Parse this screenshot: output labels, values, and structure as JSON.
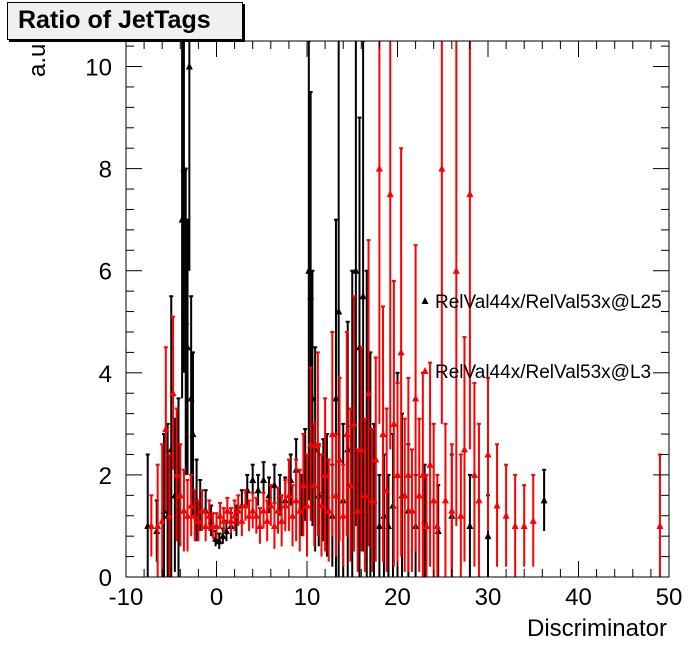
{
  "chart_data": {
    "type": "scatter",
    "title": "Ratio of JetTags",
    "xlabel": "Discriminator",
    "ylabel": "a.u.",
    "xlim": [
      -10,
      50
    ],
    "ylim": [
      0,
      10.5
    ],
    "x_ticks": [
      "-10",
      "0",
      "10",
      "20",
      "30",
      "40",
      "50"
    ],
    "y_ticks": [
      "0",
      "2",
      "4",
      "6",
      "8",
      "10"
    ],
    "grid": false,
    "legend_position": "right",
    "series": [
      {
        "name": "RelVal44x/RelVal53x@L25",
        "color": "#000000",
        "marker": "triangle-up",
        "points": [
          [
            -7.6,
            1.0,
            1.4
          ],
          [
            -6.6,
            0.9,
            0.6
          ],
          [
            -5.8,
            1.3,
            1.5
          ],
          [
            -5.4,
            1.2,
            1.8
          ],
          [
            -5.0,
            2.5,
            3.0
          ],
          [
            -4.6,
            1.6,
            1.5
          ],
          [
            -4.2,
            1.3,
            2.2
          ],
          [
            -3.8,
            7.0,
            3.5
          ],
          [
            -3.6,
            8.0,
            4.0
          ],
          [
            -3.4,
            5.0,
            3.0
          ],
          [
            -3.2,
            4.5,
            2.5
          ],
          [
            -3.0,
            10.0,
            4.0
          ],
          [
            -2.8,
            3.5,
            2.0
          ],
          [
            -2.6,
            2.8,
            1.6
          ],
          [
            -2.2,
            1.5,
            0.8
          ],
          [
            -1.8,
            1.4,
            0.5
          ],
          [
            -1.2,
            1.3,
            0.4
          ],
          [
            -0.6,
            1.1,
            0.3
          ],
          [
            -0.1,
            0.75,
            0.15
          ],
          [
            0.3,
            0.7,
            0.15
          ],
          [
            0.7,
            0.8,
            0.15
          ],
          [
            1.1,
            0.9,
            0.2
          ],
          [
            1.6,
            1.0,
            0.25
          ],
          [
            2.2,
            1.1,
            0.3
          ],
          [
            2.8,
            1.4,
            0.3
          ],
          [
            3.4,
            1.7,
            0.3
          ],
          [
            4.0,
            1.9,
            0.3
          ],
          [
            4.6,
            1.7,
            0.3
          ],
          [
            5.2,
            1.9,
            0.35
          ],
          [
            5.8,
            1.6,
            0.35
          ],
          [
            6.4,
            1.8,
            0.4
          ],
          [
            7.0,
            1.6,
            0.4
          ],
          [
            7.6,
            1.5,
            0.45
          ],
          [
            8.2,
            1.9,
            0.5
          ],
          [
            8.8,
            2.1,
            0.6
          ],
          [
            9.4,
            1.4,
            0.6
          ],
          [
            9.8,
            2.0,
            0.9
          ],
          [
            10.2,
            6.0,
            4.5
          ],
          [
            10.4,
            5.5,
            4.0
          ],
          [
            10.6,
            3.5,
            2.5
          ],
          [
            10.9,
            2.5,
            2.0
          ],
          [
            11.3,
            1.6,
            1.0
          ],
          [
            11.8,
            1.7,
            1.0
          ],
          [
            12.2,
            1.6,
            1.2
          ],
          [
            12.8,
            1.2,
            1.0
          ],
          [
            13.2,
            3.5,
            3.5
          ],
          [
            13.5,
            5.2,
            5.5
          ],
          [
            14.0,
            1.5,
            1.5
          ],
          [
            14.5,
            2.5,
            2.5
          ],
          [
            15.0,
            3.0,
            3.0
          ],
          [
            15.4,
            6.0,
            5.0
          ],
          [
            15.8,
            4.5,
            4.5
          ],
          [
            16.2,
            5.5,
            5.0
          ],
          [
            16.6,
            3.0,
            3.0
          ],
          [
            17.0,
            2.2,
            2.2
          ],
          [
            17.4,
            1.5,
            1.5
          ],
          [
            18.0,
            1.0,
            1.0
          ],
          [
            18.5,
            1.2,
            1.2
          ],
          [
            19.0,
            1.0,
            1.0
          ],
          [
            19.5,
            1.4,
            1.4
          ],
          [
            20.0,
            2.0,
            2.0
          ],
          [
            20.5,
            1.6,
            1.6
          ],
          [
            21.2,
            1.3,
            1.3
          ],
          [
            22.0,
            1.0,
            1.0
          ],
          [
            23.0,
            1.1,
            1.1
          ],
          [
            24.5,
            0.9,
            0.9
          ],
          [
            26.0,
            1.2,
            1.2
          ],
          [
            28.0,
            1.0,
            1.0
          ],
          [
            30.0,
            0.8,
            0.8
          ],
          [
            36.2,
            1.5,
            0.6
          ]
        ]
      },
      {
        "name": "RelVal44x/RelVal53x@L3",
        "color": "#ff0000",
        "marker": "triangle-up",
        "points": [
          [
            -7.2,
            1.0,
            0.6
          ],
          [
            -6.5,
            1.0,
            1.2
          ],
          [
            -6.0,
            1.1,
            1.5
          ],
          [
            -5.6,
            2.9,
            1.6
          ],
          [
            -5.2,
            1.2,
            1.2
          ],
          [
            -4.8,
            3.6,
            1.5
          ],
          [
            -4.4,
            2.0,
            1.3
          ],
          [
            -4.0,
            1.6,
            1.0
          ],
          [
            -3.6,
            1.3,
            0.8
          ],
          [
            -3.2,
            1.2,
            0.7
          ],
          [
            -2.8,
            1.4,
            0.6
          ],
          [
            -2.4,
            1.2,
            0.5
          ],
          [
            -2.0,
            1.1,
            0.4
          ],
          [
            -1.6,
            1.3,
            0.4
          ],
          [
            -1.2,
            1.0,
            0.3
          ],
          [
            -0.8,
            1.2,
            0.3
          ],
          [
            -0.4,
            1.0,
            0.25
          ],
          [
            0.0,
            1.0,
            0.25
          ],
          [
            0.4,
            1.2,
            0.25
          ],
          [
            0.8,
            1.1,
            0.25
          ],
          [
            1.2,
            1.3,
            0.25
          ],
          [
            1.6,
            1.1,
            0.25
          ],
          [
            2.0,
            1.2,
            0.3
          ],
          [
            2.4,
            1.3,
            0.3
          ],
          [
            2.8,
            1.1,
            0.3
          ],
          [
            3.2,
            1.4,
            0.3
          ],
          [
            3.6,
            1.2,
            0.3
          ],
          [
            4.0,
            1.3,
            0.35
          ],
          [
            4.4,
            1.2,
            0.35
          ],
          [
            4.8,
            1.0,
            0.35
          ],
          [
            5.2,
            1.3,
            0.35
          ],
          [
            5.6,
            1.1,
            0.4
          ],
          [
            6.0,
            1.4,
            0.4
          ],
          [
            6.4,
            1.0,
            0.45
          ],
          [
            6.8,
            1.3,
            0.45
          ],
          [
            7.2,
            1.1,
            0.5
          ],
          [
            7.6,
            1.4,
            0.5
          ],
          [
            8.0,
            1.6,
            0.7
          ],
          [
            8.4,
            1.2,
            0.6
          ],
          [
            8.8,
            1.5,
            0.8
          ],
          [
            9.2,
            1.3,
            0.8
          ],
          [
            9.6,
            1.8,
            1.0
          ],
          [
            10.0,
            1.4,
            1.0
          ],
          [
            10.4,
            2.6,
            1.5
          ],
          [
            10.8,
            1.8,
            1.2
          ],
          [
            11.2,
            2.6,
            1.8
          ],
          [
            11.6,
            1.4,
            1.0
          ],
          [
            12.0,
            2.0,
            1.5
          ],
          [
            12.4,
            1.3,
            1.0
          ],
          [
            12.8,
            2.8,
            2.0
          ],
          [
            13.2,
            1.6,
            1.2
          ],
          [
            13.6,
            2.3,
            1.6
          ],
          [
            14.0,
            1.2,
            1.0
          ],
          [
            14.4,
            2.8,
            2.0
          ],
          [
            14.8,
            1.8,
            1.5
          ],
          [
            15.2,
            3.0,
            2.5
          ],
          [
            15.6,
            1.3,
            1.2
          ],
          [
            16.0,
            2.5,
            2.0
          ],
          [
            16.4,
            1.6,
            1.5
          ],
          [
            16.8,
            3.6,
            3.0
          ],
          [
            17.2,
            1.5,
            1.4
          ],
          [
            17.6,
            2.3,
            2.0
          ],
          [
            18.0,
            8.0,
            5.0
          ],
          [
            18.4,
            2.8,
            2.5
          ],
          [
            18.8,
            1.7,
            1.6
          ],
          [
            19.2,
            7.5,
            5.0
          ],
          [
            19.6,
            3.0,
            2.8
          ],
          [
            20.0,
            2.0,
            1.8
          ],
          [
            20.4,
            4.4,
            4.0
          ],
          [
            20.8,
            1.6,
            1.5
          ],
          [
            21.2,
            2.0,
            1.9
          ],
          [
            21.6,
            1.3,
            1.2
          ],
          [
            22.0,
            3.5,
            3.0
          ],
          [
            22.4,
            1.6,
            1.5
          ],
          [
            22.8,
            2.0,
            2.0
          ],
          [
            23.2,
            1.0,
            1.0
          ],
          [
            23.6,
            2.2,
            2.0
          ],
          [
            24.0,
            1.5,
            1.5
          ],
          [
            24.4,
            1.0,
            1.0
          ],
          [
            24.9,
            8.0,
            5.0
          ],
          [
            25.3,
            1.5,
            1.5
          ],
          [
            26.0,
            1.3,
            1.3
          ],
          [
            26.5,
            6.0,
            5.0
          ],
          [
            27.0,
            1.2,
            1.2
          ],
          [
            27.4,
            2.5,
            2.2
          ],
          [
            28.0,
            7.5,
            5.0
          ],
          [
            28.5,
            2.0,
            1.8
          ],
          [
            29.0,
            1.5,
            1.5
          ],
          [
            30.0,
            2.4,
            1.5
          ],
          [
            31.0,
            1.4,
            1.2
          ],
          [
            32.0,
            1.2,
            1.0
          ],
          [
            33.0,
            1.0,
            1.0
          ],
          [
            34.0,
            1.0,
            0.8
          ],
          [
            35.0,
            1.1,
            0.9
          ],
          [
            49.0,
            1.0,
            1.4
          ]
        ]
      }
    ]
  }
}
